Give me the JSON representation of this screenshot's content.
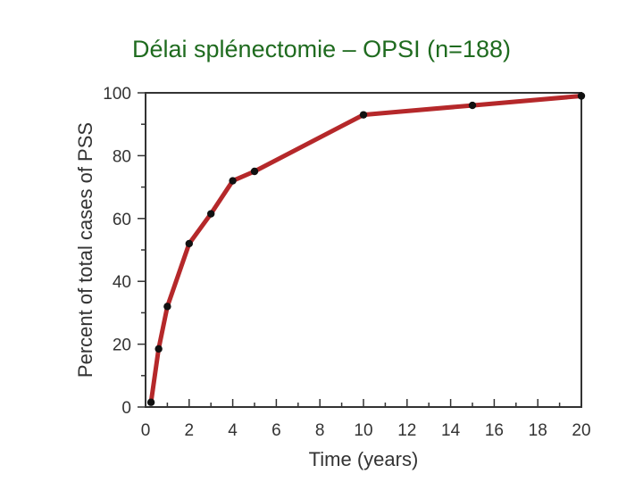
{
  "slide": {
    "title": "Délai splénectomie – OPSI (n=188)"
  },
  "chart_data": {
    "type": "line",
    "title": "Délai splénectomie – OPSI (n=188)",
    "xlabel": "Time (years)",
    "ylabel": "Percent of total cases of PSS",
    "xlim": [
      0,
      20
    ],
    "ylim": [
      0,
      100
    ],
    "xticks": [
      0,
      2,
      4,
      6,
      8,
      10,
      12,
      14,
      16,
      18,
      20
    ],
    "yticks": [
      0,
      20,
      40,
      60,
      80,
      100
    ],
    "grid": false,
    "series": [
      {
        "x": [
          0.25,
          0.6,
          1,
          2,
          3,
          4,
          5,
          10,
          15,
          20
        ],
        "y": [
          1.5,
          18.5,
          32,
          52,
          61.5,
          72,
          75,
          93,
          96,
          99
        ]
      }
    ],
    "colors": {
      "line": "#b5282a",
      "marker": "#111111",
      "axis": "#333333"
    }
  }
}
